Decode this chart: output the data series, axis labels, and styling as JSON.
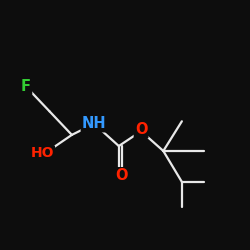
{
  "background_color": "#0d0d0d",
  "bond_color": "#e8e8e8",
  "atom_colors": {
    "O": "#ff2200",
    "N": "#3399ff",
    "F": "#33cc33",
    "C": "#e8e8e8"
  },
  "lw": 1.6,
  "figsize": [
    2.5,
    2.5
  ],
  "dpi": 100
}
